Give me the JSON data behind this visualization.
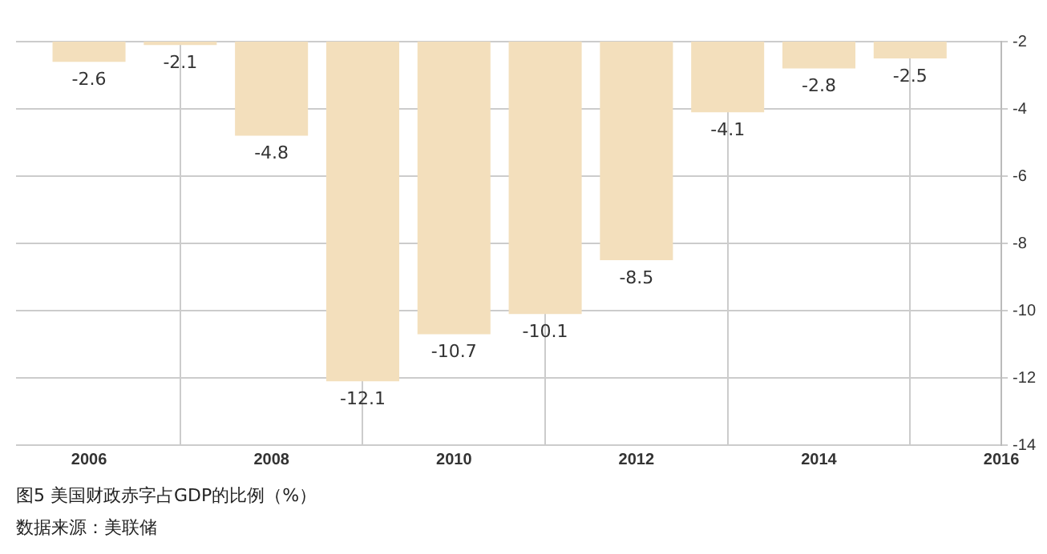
{
  "chart_data": {
    "type": "bar",
    "x": [
      2006,
      2007,
      2008,
      2009,
      2010,
      2011,
      2012,
      2013,
      2014,
      2015
    ],
    "values": [
      -2.6,
      -2.1,
      -4.8,
      -12.1,
      -10.7,
      -10.1,
      -8.5,
      -4.1,
      -2.8,
      -2.5
    ],
    "color": "#f3dfbc",
    "xlim": [
      2005.2,
      2016
    ],
    "xticks": [
      2006,
      2008,
      2010,
      2012,
      2014,
      2016
    ],
    "ylim": [
      -14,
      -2
    ],
    "yticks": [
      -14,
      -12,
      -10,
      -8,
      -6,
      -4,
      -2
    ],
    "grid": true,
    "data_labels": true,
    "legend": false,
    "annotations": [
      "图5  美国财政赤字占GDP的比例（%）",
      "数据来源：美联储"
    ]
  }
}
